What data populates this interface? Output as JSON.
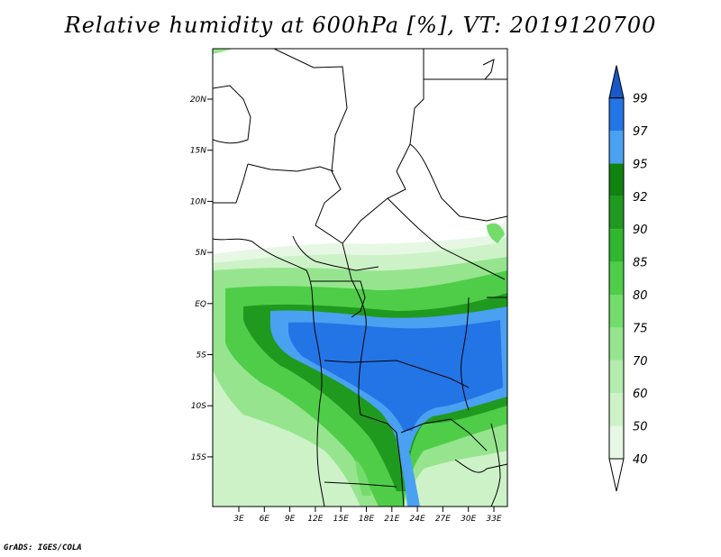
{
  "title": "Relative humidity at 600hPa [%], VT: 2019120700",
  "credit": "GrADS: IGES/COLA",
  "map": {
    "lat_labels": [
      "20N",
      "15N",
      "10N",
      "5N",
      "EQ",
      "5S",
      "10S",
      "15S"
    ],
    "lon_labels": [
      "3E",
      "6E",
      "9E",
      "12E",
      "15E",
      "18E",
      "21E",
      "24E",
      "27E",
      "30E",
      "33E"
    ]
  },
  "colorbar": {
    "levels": [
      "40",
      "50",
      "60",
      "70",
      "75",
      "80",
      "85",
      "90",
      "92",
      "95",
      "97",
      "99"
    ],
    "colors": [
      "#ffffff",
      "#e6f8e4",
      "#cdf2c8",
      "#b3ecad",
      "#96e58e",
      "#73dc6b",
      "#4fcd49",
      "#2fb72f",
      "#1f9a1f",
      "#108210",
      "#4aa1f2",
      "#2375e6",
      "#1759c7"
    ]
  }
}
